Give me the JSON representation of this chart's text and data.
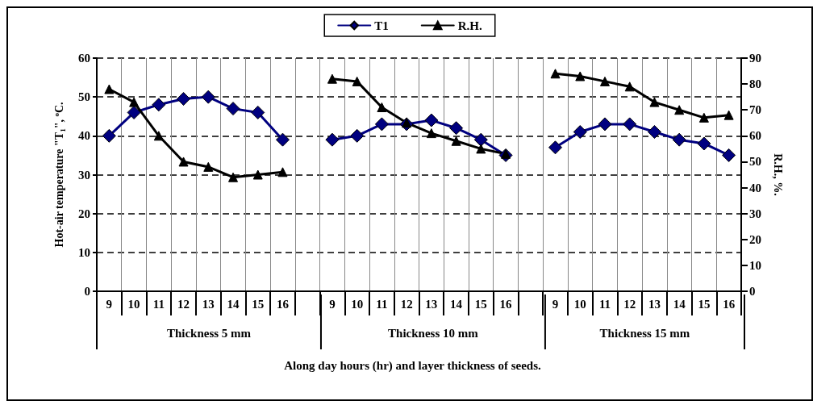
{
  "chart_data": {
    "type": "line",
    "categories": [
      "9",
      "10",
      "11",
      "12",
      "13",
      "14",
      "15",
      "16",
      null,
      "9",
      "10",
      "11",
      "12",
      "13",
      "14",
      "15",
      "16",
      null,
      "9",
      "10",
      "11",
      "12",
      "13",
      "14",
      "15",
      "16"
    ],
    "series": [
      {
        "name": "T1",
        "color": "#000080",
        "marker": "diamond",
        "values": [
          40,
          46,
          48,
          49.5,
          50,
          47,
          46,
          39,
          null,
          39,
          40,
          43,
          43,
          44,
          42,
          39,
          35,
          null,
          37,
          41,
          43,
          43,
          41,
          39,
          38,
          35
        ]
      },
      {
        "name": "R.H.",
        "color": "#000000",
        "marker": "triangle",
        "axis": "y2",
        "values": [
          78,
          73,
          60,
          50,
          48,
          44,
          45,
          46,
          null,
          82,
          81,
          71,
          65,
          61,
          58,
          55,
          53,
          null,
          84,
          83,
          81,
          79,
          73,
          70,
          67,
          68
        ]
      }
    ],
    "ylabel": "Hot-air temperature \"T$_{1}$\", $^{o}$C.",
    "y2label": "R.H., %.",
    "xlabel": "Along day hours (hr) and layer thickness of seeds.",
    "annotations": [
      "Thickness 5 mm",
      "Thickness 10 mm",
      "Thickness 15 mm"
    ],
    "ylim": [
      0,
      60
    ],
    "yticks": [
      0,
      10,
      20,
      30,
      40,
      50,
      60
    ],
    "y2lim": [
      0,
      90
    ],
    "y2ticks": [
      0,
      10,
      20,
      30,
      40,
      50,
      60,
      70,
      80,
      90
    ],
    "grid": true,
    "legend": "top",
    "line_style": "solid"
  }
}
